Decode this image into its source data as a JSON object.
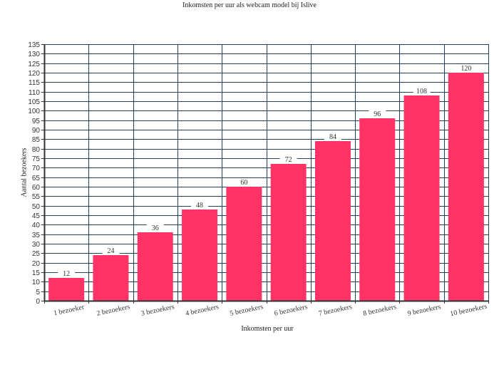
{
  "chart_data": {
    "type": "bar",
    "title": "Inkomsten per uur als webcam model bij Islive",
    "xlabel": "Inkomsten per uur",
    "ylabel": "Aantal bezoekers",
    "categories": [
      "1 bezoeker",
      "2 bezoekers",
      "3 bezoekers",
      "4 bezoekers",
      "5 bezoekers",
      "6 bezoekers",
      "7 bezoekers",
      "8 bezoekers",
      "9 bezoekers",
      "10 bezoekers"
    ],
    "values": [
      12,
      24,
      36,
      48,
      60,
      72,
      84,
      96,
      108,
      120
    ],
    "ylim": [
      0,
      135
    ],
    "ytick_step": 5,
    "grid": true,
    "legend": null,
    "bar_color": "#ff3366",
    "grid_color": "#1f3f5f",
    "plot_background": "#ffffff"
  }
}
